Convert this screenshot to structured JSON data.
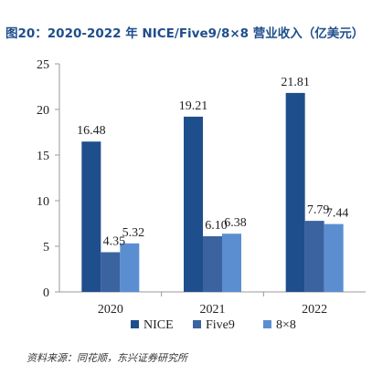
{
  "header": {
    "title": "图20：2020-2022 年 NICE/Five9/8×8 营业收入（亿美元）"
  },
  "chart_data": {
    "type": "bar",
    "categories": [
      "2020",
      "2021",
      "2022"
    ],
    "series": [
      {
        "name": "NICE",
        "values": [
          16.48,
          19.21,
          21.81
        ],
        "color": "#1f4e8c"
      },
      {
        "name": "Five9",
        "values": [
          4.35,
          6.1,
          7.79
        ],
        "color": "#3a63a0"
      },
      {
        "name": "8×8",
        "values": [
          5.32,
          6.38,
          7.44
        ],
        "color": "#5b8ed0"
      }
    ],
    "data_labels": [
      [
        "16.48",
        "4.35",
        "5.32"
      ],
      [
        "19.21",
        "6.10",
        "6.38"
      ],
      [
        "21.81",
        "7.79",
        "7.44"
      ]
    ],
    "ylim": [
      0,
      25
    ],
    "yticks": [
      0,
      5,
      10,
      15,
      20,
      25
    ],
    "grid": false,
    "legend_position": "bottom"
  },
  "footer": {
    "source": "资料来源：同花顺，东兴证券研究所"
  }
}
